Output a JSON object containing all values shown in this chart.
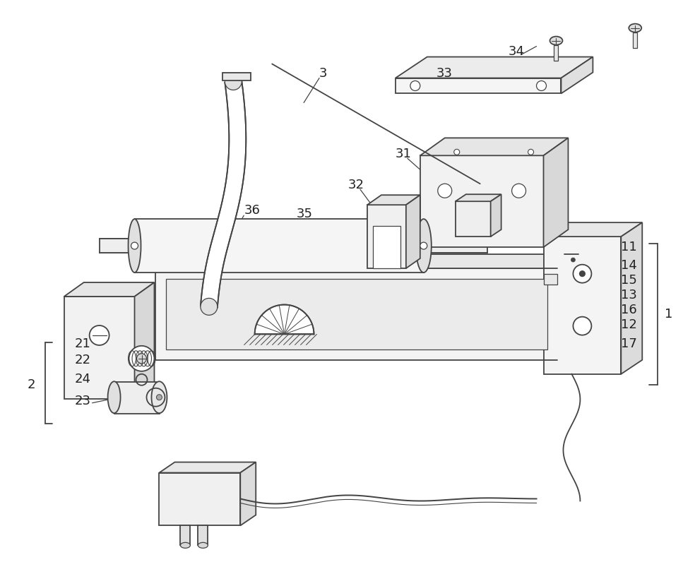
{
  "background_color": "#ffffff",
  "line_color": "#444444",
  "label_color": "#222222",
  "fig_width": 9.84,
  "fig_height": 7.96,
  "dpi": 100
}
